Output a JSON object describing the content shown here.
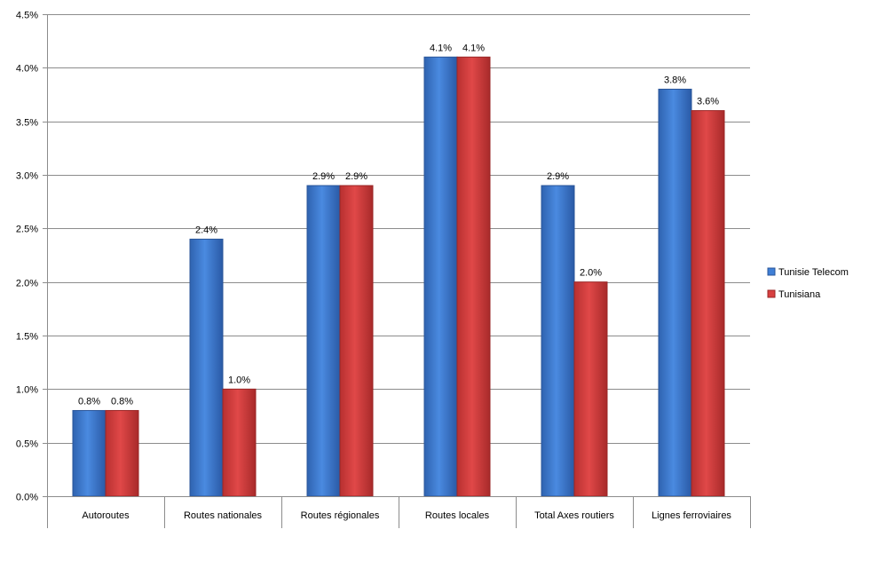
{
  "chart_data": {
    "type": "bar",
    "title": "",
    "xlabel": "",
    "ylabel": "",
    "categories": [
      "Autoroutes",
      "Routes nationales",
      "Routes régionales",
      "Routes locales",
      "Total Axes routiers",
      "Lignes ferroviaires"
    ],
    "series": [
      {
        "name": "Tunisie Telecom",
        "values": [
          0.8,
          2.4,
          2.9,
          4.1,
          2.9,
          3.8
        ],
        "labels": [
          "0.8%",
          "2.4%",
          "2.9%",
          "4.1%",
          "2.9%",
          "3.8%"
        ],
        "color": "#3f7fd6"
      },
      {
        "name": "Tunisiana",
        "values": [
          0.8,
          1.0,
          2.9,
          4.1,
          2.0,
          3.6
        ],
        "labels": [
          "0.8%",
          "1.0%",
          "2.9%",
          "4.1%",
          "2.0%",
          "3.6%"
        ],
        "color": "#d84040"
      }
    ],
    "ylim": [
      0,
      4.5
    ],
    "yticks": [
      "0.0%",
      "0.5%",
      "1.0%",
      "1.5%",
      "2.0%",
      "2.5%",
      "3.0%",
      "3.5%",
      "4.0%",
      "4.5%"
    ],
    "grid": true,
    "legend": "right"
  }
}
